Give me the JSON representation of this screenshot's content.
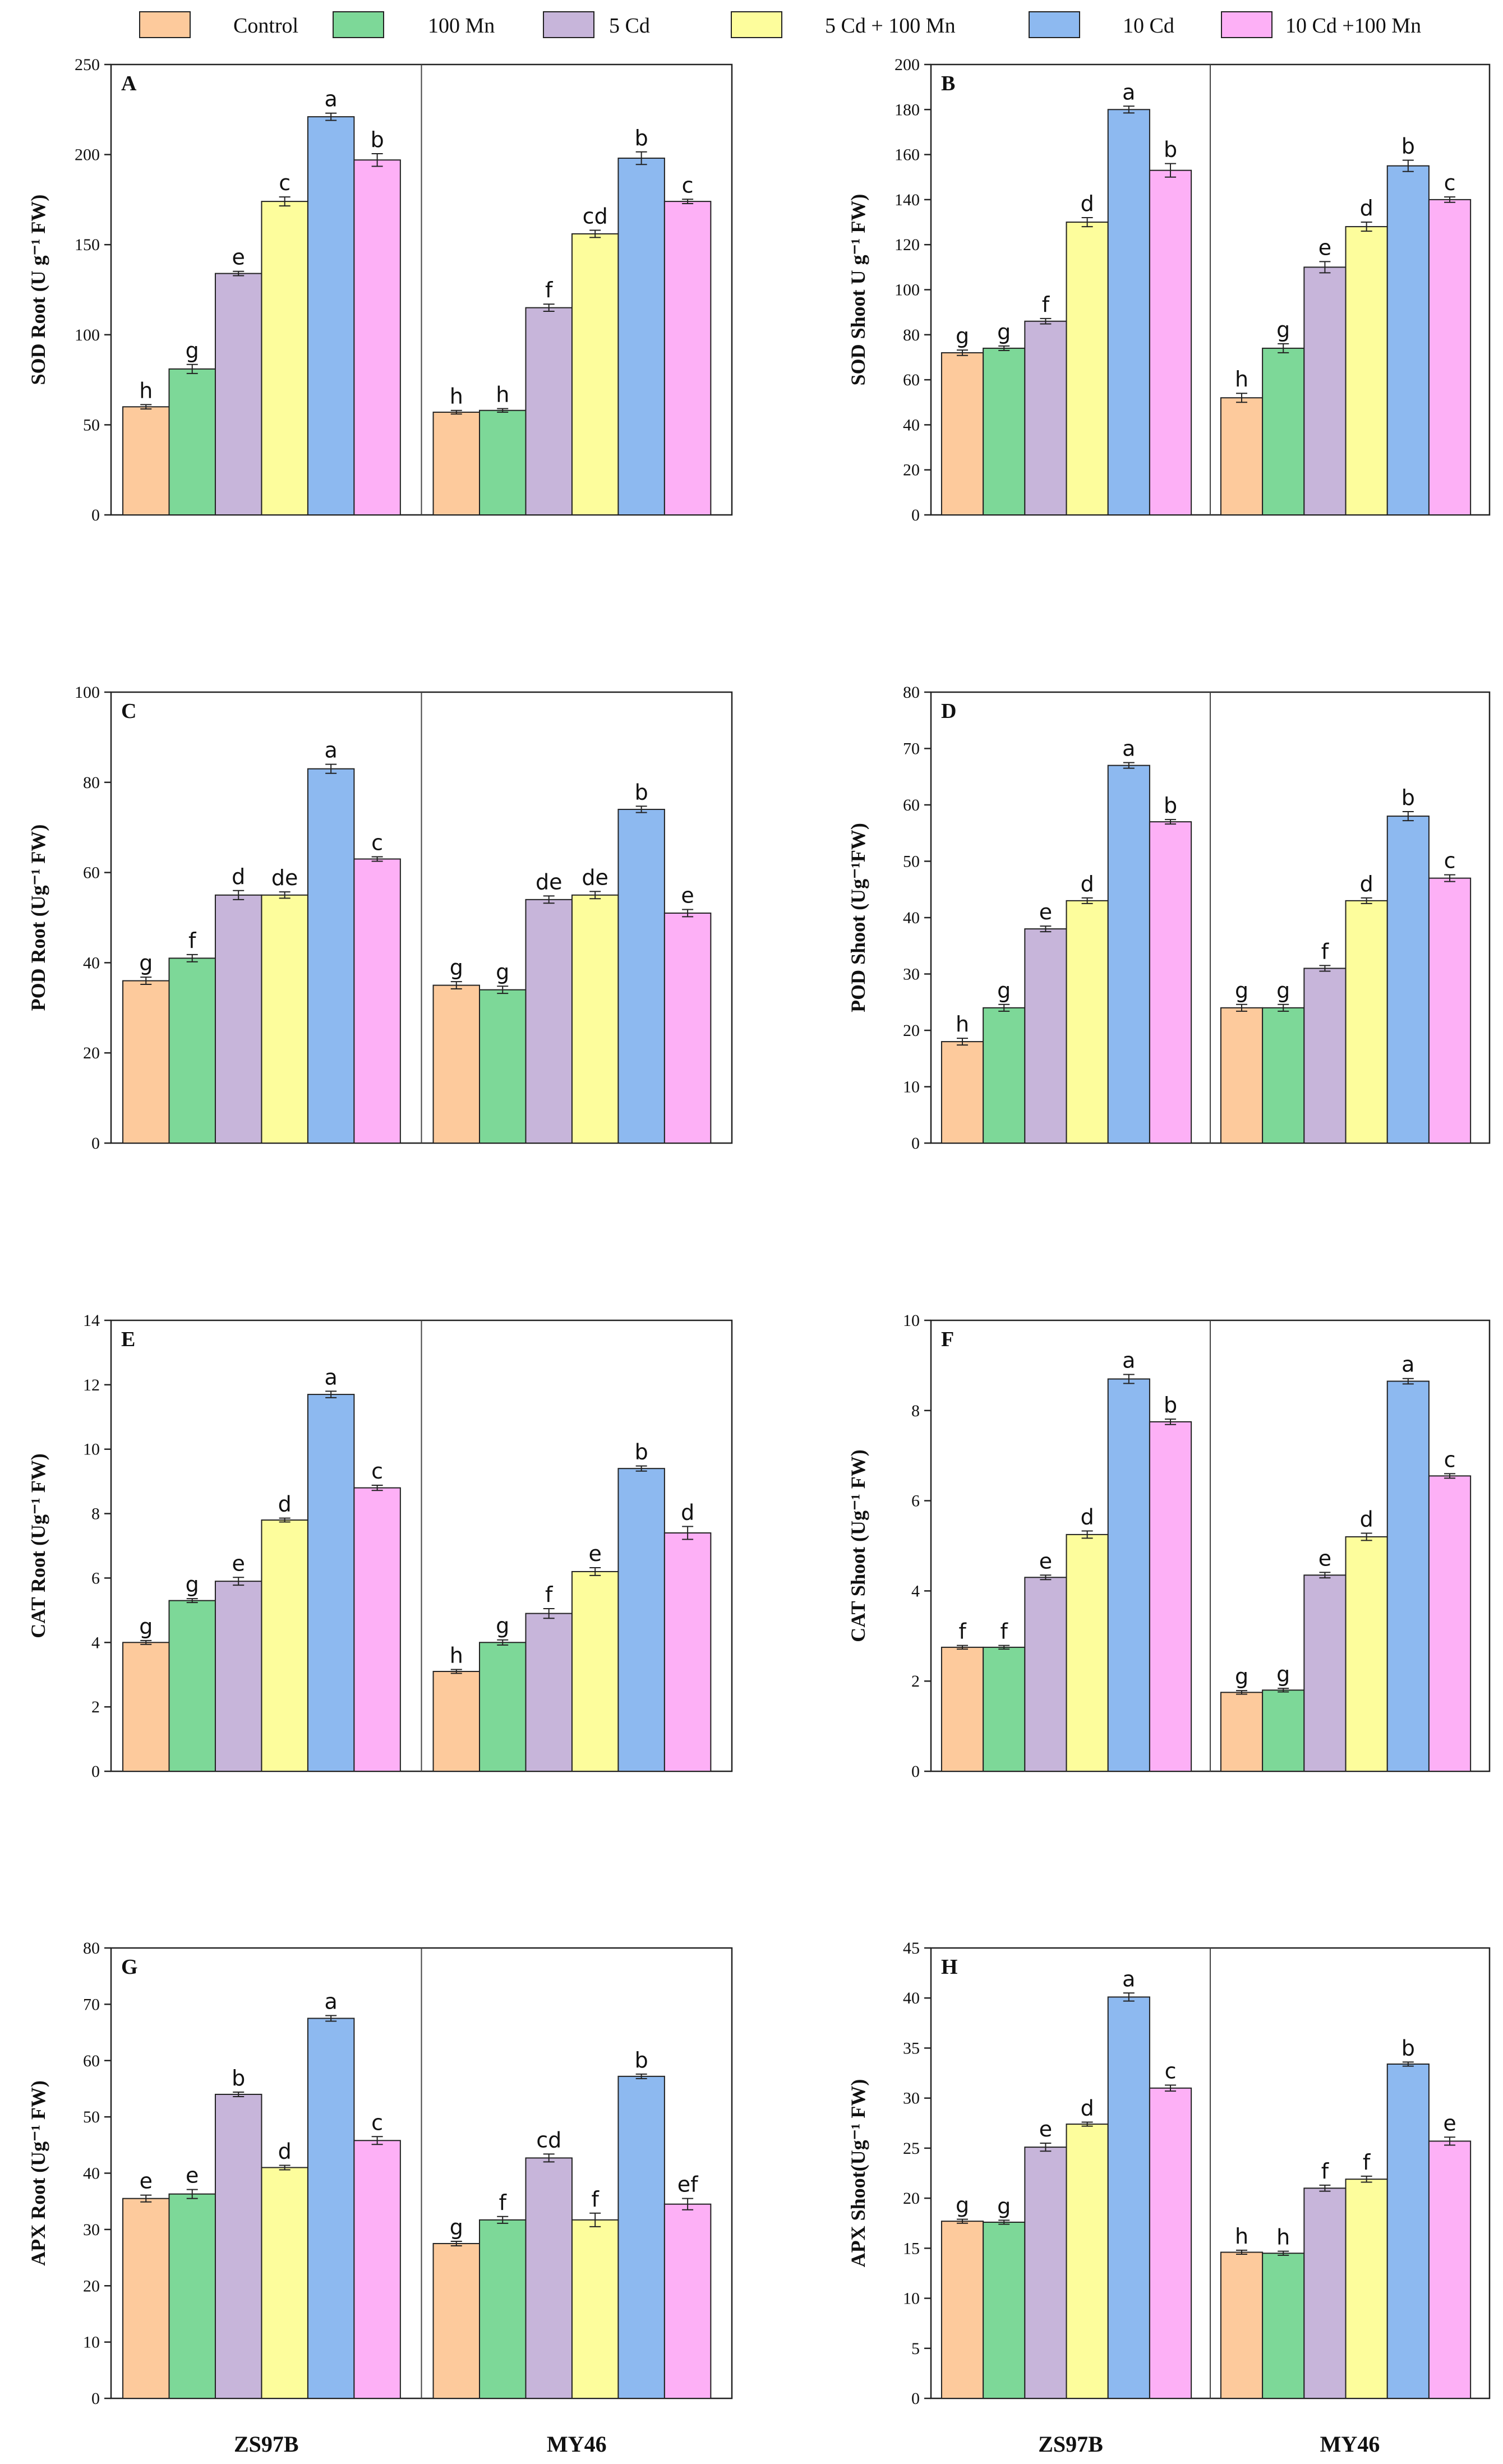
{
  "legend": [
    {
      "label": "Control",
      "color": "#FDCA9C"
    },
    {
      "label": "100 Mn",
      "color": "#7DD898"
    },
    {
      "label": "5 Cd",
      "color": "#C7B5DA"
    },
    {
      "label": "5 Cd + 100 Mn",
      "color": "#FDFD9C"
    },
    {
      "label": "10 Cd",
      "color": "#8DB9F0"
    },
    {
      "label": "10 Cd +100 Mn",
      "color": "#FDB0F6"
    }
  ],
  "chart_data": [
    {
      "type": "bar",
      "panel": "A",
      "ylabel": "SOD Root (U g⁻¹ FW)",
      "ylim": [
        0,
        250
      ],
      "yticks": [
        0,
        50,
        100,
        150,
        200,
        250
      ],
      "groups": [
        "ZS97B",
        "MY46"
      ],
      "series": [
        {
          "name": "Control",
          "values": [
            60,
            57
          ],
          "errors": [
            1.2,
            1.0
          ],
          "letters": [
            "h",
            "h"
          ]
        },
        {
          "name": "100 Mn",
          "values": [
            81,
            58
          ],
          "errors": [
            2.5,
            1.0
          ],
          "letters": [
            "g",
            "h"
          ]
        },
        {
          "name": "5 Cd",
          "values": [
            134,
            115
          ],
          "errors": [
            1.2,
            2.0
          ],
          "letters": [
            "e",
            "f"
          ]
        },
        {
          "name": "5 Cd + 100 Mn",
          "values": [
            174,
            156
          ],
          "errors": [
            2.5,
            2.0
          ],
          "letters": [
            "c",
            "cd"
          ]
        },
        {
          "name": "10 Cd",
          "values": [
            221,
            198
          ],
          "errors": [
            2.0,
            3.5
          ],
          "letters": [
            "a",
            "b"
          ]
        },
        {
          "name": "10 Cd +100 Mn",
          "values": [
            197,
            174
          ],
          "errors": [
            3.5,
            1.2
          ],
          "letters": [
            "b",
            "c"
          ]
        }
      ]
    },
    {
      "type": "bar",
      "panel": "B",
      "ylabel": "SOD Shoot U g⁻¹ FW)",
      "ylim": [
        0,
        200
      ],
      "yticks": [
        0,
        20,
        40,
        60,
        80,
        100,
        120,
        140,
        160,
        180,
        200
      ],
      "groups": [
        "ZS97B",
        "MY46"
      ],
      "series": [
        {
          "name": "Control",
          "values": [
            72,
            52
          ],
          "errors": [
            1.2,
            2.0
          ],
          "letters": [
            "g",
            "h"
          ]
        },
        {
          "name": "100 Mn",
          "values": [
            74,
            74
          ],
          "errors": [
            1.0,
            2.0
          ],
          "letters": [
            "g",
            "g"
          ]
        },
        {
          "name": "5 Cd",
          "values": [
            86,
            110
          ],
          "errors": [
            1.2,
            2.5
          ],
          "letters": [
            "f",
            "e"
          ]
        },
        {
          "name": "5 Cd + 100 Mn",
          "values": [
            130,
            128
          ],
          "errors": [
            2.0,
            2.0
          ],
          "letters": [
            "d",
            "d"
          ]
        },
        {
          "name": "10 Cd",
          "values": [
            180,
            155
          ],
          "errors": [
            1.5,
            2.5
          ],
          "letters": [
            "a",
            "b"
          ]
        },
        {
          "name": "10 Cd +100 Mn",
          "values": [
            153,
            140
          ],
          "errors": [
            3.0,
            1.2
          ],
          "letters": [
            "b",
            "c"
          ]
        }
      ]
    },
    {
      "type": "bar",
      "panel": "C",
      "ylabel": "POD Root (Ug⁻¹ FW)",
      "ylim": [
        0,
        100
      ],
      "yticks": [
        0,
        20,
        40,
        60,
        80,
        100
      ],
      "groups": [
        "ZS97B",
        "MY46"
      ],
      "series": [
        {
          "name": "Control",
          "values": [
            36,
            35
          ],
          "errors": [
            0.8,
            0.8
          ],
          "letters": [
            "g",
            "g"
          ]
        },
        {
          "name": "100 Mn",
          "values": [
            41,
            34
          ],
          "errors": [
            0.8,
            0.8
          ],
          "letters": [
            "f",
            "g"
          ]
        },
        {
          "name": "5 Cd",
          "values": [
            55,
            54
          ],
          "errors": [
            1.0,
            0.8
          ],
          "letters": [
            "d",
            "de"
          ]
        },
        {
          "name": "5 Cd + 100 Mn",
          "values": [
            55,
            55
          ],
          "errors": [
            0.7,
            0.8
          ],
          "letters": [
            "de",
            "de"
          ]
        },
        {
          "name": "10 Cd",
          "values": [
            83,
            74
          ],
          "errors": [
            1.0,
            0.7
          ],
          "letters": [
            "a",
            "b"
          ]
        },
        {
          "name": "10 Cd +100 Mn",
          "values": [
            63,
            51
          ],
          "errors": [
            0.5,
            0.8
          ],
          "letters": [
            "c",
            "e"
          ]
        }
      ]
    },
    {
      "type": "bar",
      "panel": "D",
      "ylabel": "POD Shoot (Ug⁻¹FW)",
      "ylim": [
        0,
        80
      ],
      "yticks": [
        0,
        10,
        20,
        30,
        40,
        50,
        60,
        70,
        80
      ],
      "groups": [
        "ZS97B",
        "MY46"
      ],
      "series": [
        {
          "name": "Control",
          "values": [
            18,
            24
          ],
          "errors": [
            0.6,
            0.6
          ],
          "letters": [
            "h",
            "g"
          ]
        },
        {
          "name": "100 Mn",
          "values": [
            24,
            24
          ],
          "errors": [
            0.6,
            0.6
          ],
          "letters": [
            "g",
            "g"
          ]
        },
        {
          "name": "5 Cd",
          "values": [
            38,
            31
          ],
          "errors": [
            0.5,
            0.5
          ],
          "letters": [
            "e",
            "f"
          ]
        },
        {
          "name": "5 Cd + 100 Mn",
          "values": [
            43,
            43
          ],
          "errors": [
            0.5,
            0.5
          ],
          "letters": [
            "d",
            "d"
          ]
        },
        {
          "name": "10 Cd",
          "values": [
            67,
            58
          ],
          "errors": [
            0.5,
            0.8
          ],
          "letters": [
            "a",
            "b"
          ]
        },
        {
          "name": "10 Cd +100 Mn",
          "values": [
            57,
            47
          ],
          "errors": [
            0.4,
            0.6
          ],
          "letters": [
            "b",
            "c"
          ]
        }
      ]
    },
    {
      "type": "bar",
      "panel": "E",
      "ylabel": "CAT Root (Ug⁻¹ FW)",
      "ylim": [
        0,
        14
      ],
      "yticks": [
        0,
        2,
        4,
        6,
        8,
        10,
        12,
        14
      ],
      "groups": [
        "ZS97B",
        "MY46"
      ],
      "series": [
        {
          "name": "Control",
          "values": [
            4.0,
            3.1
          ],
          "errors": [
            0.06,
            0.06
          ],
          "letters": [
            "g",
            "h"
          ]
        },
        {
          "name": "100 Mn",
          "values": [
            5.3,
            4.0
          ],
          "errors": [
            0.06,
            0.08
          ],
          "letters": [
            "g",
            "g"
          ]
        },
        {
          "name": "5 Cd",
          "values": [
            5.9,
            4.9
          ],
          "errors": [
            0.12,
            0.15
          ],
          "letters": [
            "e",
            "f"
          ]
        },
        {
          "name": "5 Cd + 100 Mn",
          "values": [
            7.8,
            6.2
          ],
          "errors": [
            0.06,
            0.12
          ],
          "letters": [
            "d",
            "e"
          ]
        },
        {
          "name": "10 Cd",
          "values": [
            11.7,
            9.4
          ],
          "errors": [
            0.1,
            0.08
          ],
          "letters": [
            "a",
            "b"
          ]
        },
        {
          "name": "10 Cd +100 Mn",
          "values": [
            8.8,
            7.4
          ],
          "errors": [
            0.08,
            0.2
          ],
          "letters": [
            "c",
            "d"
          ]
        }
      ]
    },
    {
      "type": "bar",
      "panel": "F",
      "ylabel": "CAT Shoot (Ug⁻¹ FW)",
      "ylim": [
        0,
        10
      ],
      "yticks": [
        0,
        2,
        4,
        6,
        8,
        10
      ],
      "groups": [
        "ZS97B",
        "MY46"
      ],
      "series": [
        {
          "name": "Control",
          "values": [
            2.75,
            1.75
          ],
          "errors": [
            0.04,
            0.04
          ],
          "letters": [
            "f",
            "g"
          ]
        },
        {
          "name": "100 Mn",
          "values": [
            2.75,
            1.8
          ],
          "errors": [
            0.04,
            0.04
          ],
          "letters": [
            "f",
            "g"
          ]
        },
        {
          "name": "5 Cd",
          "values": [
            4.3,
            4.35
          ],
          "errors": [
            0.05,
            0.06
          ],
          "letters": [
            "e",
            "e"
          ]
        },
        {
          "name": "5 Cd + 100 Mn",
          "values": [
            5.25,
            5.2
          ],
          "errors": [
            0.08,
            0.08
          ],
          "letters": [
            "d",
            "d"
          ]
        },
        {
          "name": "10 Cd",
          "values": [
            8.7,
            8.65
          ],
          "errors": [
            0.1,
            0.06
          ],
          "letters": [
            "a",
            "a"
          ]
        },
        {
          "name": "10 Cd +100 Mn",
          "values": [
            7.75,
            6.55
          ],
          "errors": [
            0.06,
            0.05
          ],
          "letters": [
            "b",
            "c"
          ]
        }
      ]
    },
    {
      "type": "bar",
      "panel": "G",
      "ylabel": "APX Root (Ug⁻¹ FW)",
      "ylim": [
        0,
        80
      ],
      "yticks": [
        0,
        10,
        20,
        30,
        40,
        50,
        60,
        70,
        80
      ],
      "groups": [
        "ZS97B",
        "MY46"
      ],
      "series": [
        {
          "name": "Control",
          "values": [
            35.5,
            27.5
          ],
          "errors": [
            0.6,
            0.4
          ],
          "letters": [
            "e",
            "g"
          ]
        },
        {
          "name": "100 Mn",
          "values": [
            36.3,
            31.7
          ],
          "errors": [
            0.8,
            0.6
          ],
          "letters": [
            "e",
            "f"
          ]
        },
        {
          "name": "5 Cd",
          "values": [
            54,
            42.7
          ],
          "errors": [
            0.4,
            0.7
          ],
          "letters": [
            "b",
            "cd"
          ]
        },
        {
          "name": "5 Cd + 100 Mn",
          "values": [
            41,
            31.7
          ],
          "errors": [
            0.4,
            1.2
          ],
          "letters": [
            "d",
            "f"
          ]
        },
        {
          "name": "10 Cd",
          "values": [
            67.5,
            57.2
          ],
          "errors": [
            0.5,
            0.4
          ],
          "letters": [
            "a",
            "b"
          ]
        },
        {
          "name": "10 Cd +100 Mn",
          "values": [
            45.8,
            34.5
          ],
          "errors": [
            0.7,
            1.0
          ],
          "letters": [
            "c",
            "ef"
          ]
        }
      ]
    },
    {
      "type": "bar",
      "panel": "H",
      "ylabel": "APX Shoot(Ug⁻¹ FW)",
      "ylim": [
        0,
        45
      ],
      "yticks": [
        0,
        5,
        10,
        15,
        20,
        25,
        30,
        35,
        40,
        45
      ],
      "groups": [
        "ZS97B",
        "MY46"
      ],
      "series": [
        {
          "name": "Control",
          "values": [
            17.7,
            14.6
          ],
          "errors": [
            0.2,
            0.2
          ],
          "letters": [
            "g",
            "h"
          ]
        },
        {
          "name": "100 Mn",
          "values": [
            17.6,
            14.5
          ],
          "errors": [
            0.2,
            0.2
          ],
          "letters": [
            "g",
            "h"
          ]
        },
        {
          "name": "5 Cd",
          "values": [
            25.1,
            21
          ],
          "errors": [
            0.4,
            0.3
          ],
          "letters": [
            "e",
            "f"
          ]
        },
        {
          "name": "5 Cd + 100 Mn",
          "values": [
            27.4,
            21.9
          ],
          "errors": [
            0.2,
            0.3
          ],
          "letters": [
            "d",
            "f"
          ]
        },
        {
          "name": "10 Cd",
          "values": [
            40.1,
            33.4
          ],
          "errors": [
            0.4,
            0.2
          ],
          "letters": [
            "a",
            "b"
          ]
        },
        {
          "name": "10 Cd +100 Mn",
          "values": [
            31,
            25.7
          ],
          "errors": [
            0.3,
            0.4
          ],
          "letters": [
            "c",
            "e"
          ]
        }
      ]
    }
  ]
}
